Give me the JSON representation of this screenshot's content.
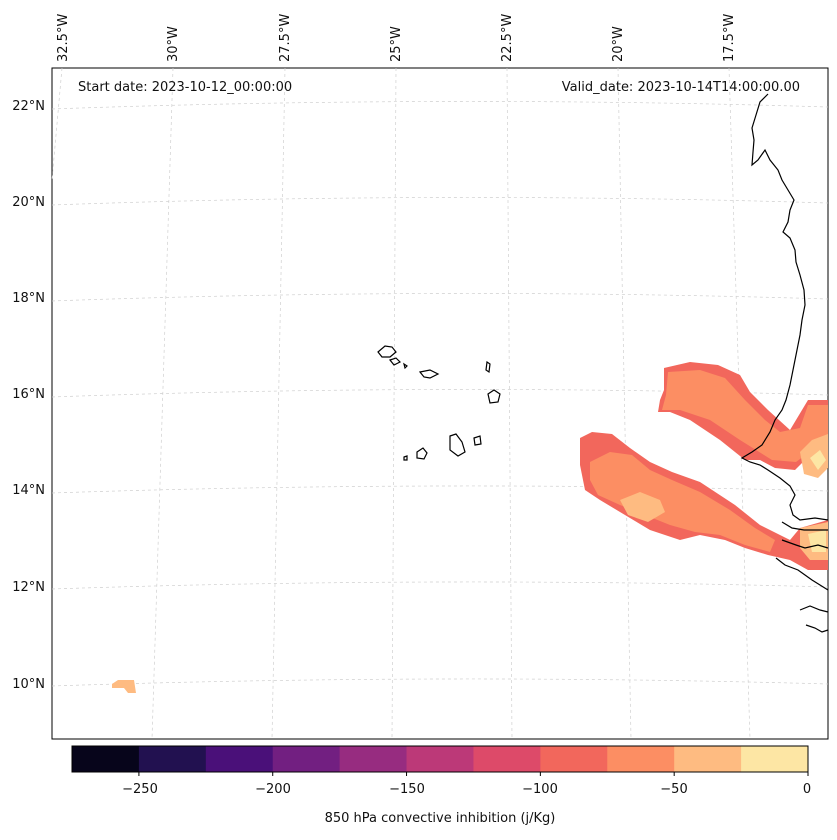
{
  "title_left": "Start date: 2023-10-12_00:00:00",
  "title_right": "Valid_date: 2023-10-14T14:00:00.00",
  "lon_labels": [
    "32.5°W",
    "30°W",
    "27.5°W",
    "25°W",
    "22.5°W",
    "20°W",
    "17.5°W"
  ],
  "lat_labels": [
    "22°N",
    "20°N",
    "18°N",
    "16°N",
    "14°N",
    "12°N",
    "10°N"
  ],
  "colorbar": {
    "label": "850 hPa convective inhibition (j/Kg)",
    "ticks": [
      "−250",
      "−200",
      "−150",
      "−100",
      "−50",
      "0"
    ],
    "levels": [
      -275,
      -250,
      -225,
      -200,
      -175,
      -150,
      -125,
      -100,
      -75,
      -50,
      -25,
      0
    ],
    "colors": [
      "#07051b",
      "#221150",
      "#4a1079",
      "#721f81",
      "#972c80",
      "#bc3978",
      "#dd4a69",
      "#f2675c",
      "#fc8e63",
      "#febb81",
      "#fde6a4"
    ]
  },
  "field_colors": {
    "range_-100_-75": "#f2675c",
    "range_-75_-50": "#fc8e63",
    "range_-50_-25": "#febb81",
    "range_-25_0": "#fde6a4",
    "coast": "#000000"
  }
}
